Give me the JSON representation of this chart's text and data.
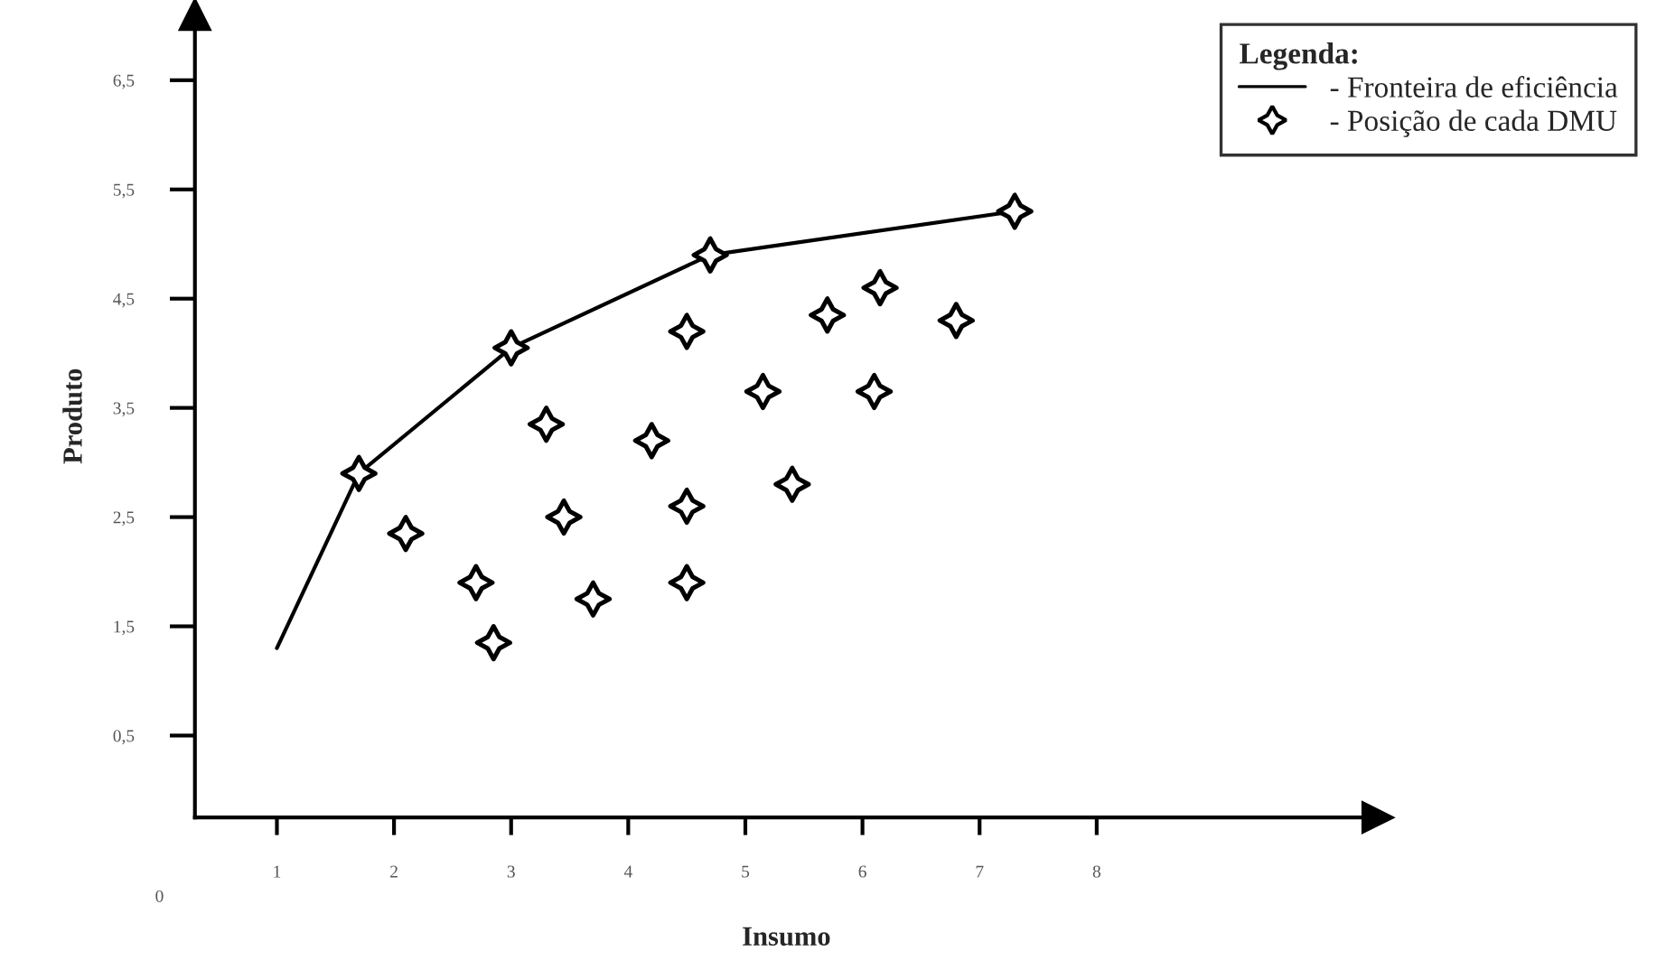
{
  "chart_data": {
    "type": "scatter",
    "xlabel": "Insumo",
    "ylabel": "Produto",
    "legend_title": "Legenda:",
    "legend": "top right",
    "grid": false,
    "xlim": [
      0.3,
      10.4
    ],
    "ylim": [
      -0.25,
      7.1
    ],
    "xticks": [
      1,
      2,
      3,
      4,
      5,
      6,
      7,
      8
    ],
    "yticks": [
      {
        "value": 0.5,
        "label": "0,5"
      },
      {
        "value": 1.5,
        "label": "1,5"
      },
      {
        "value": 2.5,
        "label": "2,5"
      },
      {
        "value": 3.5,
        "label": "3,5"
      },
      {
        "value": 4.5,
        "label": "4,5"
      },
      {
        "value": 5.5,
        "label": "5,5"
      },
      {
        "value": 6.5,
        "label": "6,5"
      }
    ],
    "annotations": [
      "0"
    ],
    "series": [
      {
        "name": "- Fronteira de eficiência",
        "type": "line",
        "marker": "none",
        "color": "#000000",
        "x": [
          1.0,
          1.7,
          3.0,
          4.7,
          7.3
        ],
        "values": [
          1.3,
          2.9,
          4.05,
          4.9,
          5.3
        ]
      },
      {
        "name": "- Posição de cada DMU",
        "marker": "star",
        "color": "#000000",
        "x": [
          1.7,
          3.0,
          4.7,
          7.3,
          2.1,
          2.7,
          2.85,
          3.3,
          3.45,
          3.7,
          4.2,
          4.5,
          4.5,
          4.5,
          5.15,
          5.4,
          5.7,
          6.15,
          6.8,
          6.1
        ],
        "values": [
          2.9,
          4.05,
          4.9,
          5.3,
          2.35,
          1.9,
          1.35,
          3.35,
          2.5,
          1.75,
          3.2,
          4.2,
          2.6,
          1.9,
          3.65,
          2.8,
          4.35,
          4.6,
          4.3,
          3.65
        ]
      }
    ]
  }
}
